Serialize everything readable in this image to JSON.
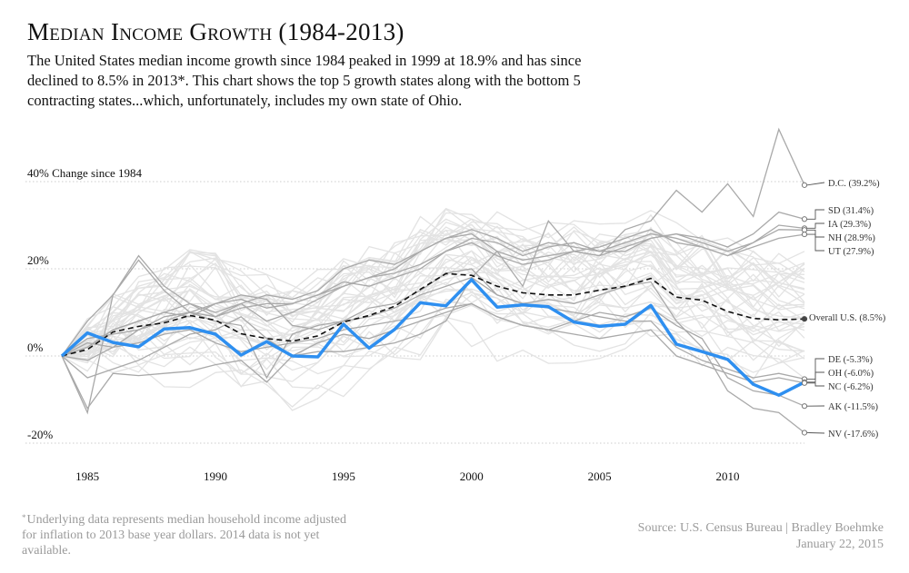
{
  "title": "Median Income Growth (1984-2013)",
  "subtitle": "The United States median income growth since 1984 peaked in 1999 at 18.9% and has since declined to 8.5% in 2013*. This chart shows the top 5 growth states along with the bottom 5 contracting states...which, unfortunately, includes my own state of Ohio.",
  "footnote_marker": "*",
  "footnote": "Underlying data represents median household income adjusted for inflation to 2013 base year dollars. 2014 data is not yet available.",
  "source": "Source: U.S. Census Bureau | Bradley Boehmke",
  "date": "January 22, 2015",
  "colors": {
    "background_states": "#e3e3e3",
    "highlight_states": "#a9a9a9",
    "ohio": "#2e8ff0",
    "us": "#111111",
    "grid": "#cccccc",
    "label_text": "#333333"
  },
  "chart_data": {
    "type": "line",
    "x_ticks": [
      "1985",
      "1990",
      "1995",
      "2000",
      "2005",
      "2010"
    ],
    "y_ticks": [
      "40% Change since 1984",
      "20%",
      "0%",
      "-20%"
    ],
    "y_tick_values": [
      40,
      20,
      0,
      -20
    ],
    "xlim": [
      1984,
      2013
    ],
    "ylim": [
      -22,
      42
    ],
    "grid": "horizontal dotted",
    "years": [
      1984,
      1985,
      1986,
      1987,
      1988,
      1989,
      1990,
      1991,
      1992,
      1993,
      1994,
      1995,
      1996,
      1997,
      1998,
      1999,
      2000,
      2001,
      2002,
      2003,
      2004,
      2005,
      2006,
      2007,
      2008,
      2009,
      2010,
      2011,
      2012,
      2013
    ],
    "series": [
      {
        "name": "D.C.",
        "role": "highlight",
        "label": "D.C. (39.2%)",
        "values": [
          0,
          -12,
          -4,
          -4.5,
          -4,
          -3.5,
          -2,
          -1,
          -6,
          0,
          1,
          1,
          2,
          3,
          5,
          8,
          18,
          24,
          16,
          31,
          24,
          23,
          29,
          31,
          38,
          33,
          39.5,
          32,
          52,
          39.2
        ]
      },
      {
        "name": "SD",
        "role": "highlight",
        "label": "SD (31.4%)",
        "values": [
          0,
          3,
          2,
          6,
          8,
          10,
          9,
          11,
          12,
          12,
          14,
          17,
          16,
          18,
          20,
          24,
          27,
          26,
          23,
          25,
          26,
          24,
          24,
          27,
          28,
          27,
          25,
          28,
          33,
          31.4
        ]
      },
      {
        "name": "IA",
        "role": "highlight",
        "label": "IA (29.3%)",
        "values": [
          0,
          4,
          5,
          6,
          9,
          10,
          12,
          13,
          11,
          12,
          14,
          16,
          18,
          19,
          21,
          24,
          26,
          23,
          21,
          22,
          24,
          23,
          25,
          27,
          28,
          26,
          24,
          26,
          30,
          29.3
        ]
      },
      {
        "name": "NH",
        "role": "highlight",
        "label": "NH (28.9%)",
        "values": [
          0,
          8,
          14,
          23,
          16,
          12,
          10,
          12,
          8,
          10,
          13,
          16,
          18,
          20,
          24,
          27,
          29,
          27,
          24,
          26,
          25,
          24,
          26,
          28,
          27,
          25,
          23,
          26,
          29,
          28.9
        ]
      },
      {
        "name": "UT",
        "role": "highlight",
        "label": "UT (27.9%)",
        "values": [
          0,
          2,
          6,
          8,
          10,
          12,
          9,
          12,
          14,
          13,
          15,
          20,
          22,
          21,
          24,
          27,
          28,
          24,
          22,
          23,
          24,
          25,
          27,
          29,
          26,
          25,
          23,
          25,
          27,
          27.9
        ]
      },
      {
        "name": "DE",
        "role": "highlight",
        "label": "DE (-5.3%)",
        "values": [
          0,
          2,
          6,
          8,
          10,
          9,
          12,
          14,
          13,
          7,
          6,
          8,
          9,
          11,
          14,
          16,
          18,
          14,
          12,
          11,
          10,
          9,
          8,
          8,
          2,
          -1,
          -3,
          -5,
          -4,
          -5.3
        ]
      },
      {
        "name": "NC",
        "role": "highlight",
        "label": "NC (-6.2%)",
        "values": [
          0,
          -1,
          2,
          3,
          5,
          6,
          3,
          1,
          2,
          3,
          4,
          6,
          7,
          8,
          9,
          11,
          12,
          9,
          7,
          6,
          5,
          4,
          5,
          6,
          0,
          -2,
          -4,
          -6,
          -5,
          -6.2
        ]
      },
      {
        "name": "AK",
        "role": "highlight",
        "label": "AK (-11.5%)",
        "values": [
          0,
          -5,
          -3,
          -1,
          2,
          5,
          6,
          9,
          4,
          0,
          3,
          5,
          4,
          6,
          8,
          10,
          12,
          9,
          7,
          6,
          8,
          10,
          9,
          11,
          7,
          4,
          -5,
          -8,
          -9,
          -11.5
        ]
      },
      {
        "name": "NV",
        "role": "highlight",
        "label": "NV (-17.6%)",
        "values": [
          0,
          -13,
          14,
          22,
          15,
          10,
          8,
          7,
          -5,
          5,
          7,
          8,
          11,
          12,
          15,
          19,
          20,
          14,
          12,
          13,
          12,
          14,
          16,
          17,
          8,
          2,
          -8,
          -12,
          -13,
          -17.6
        ]
      },
      {
        "name": "Overall U.S.",
        "role": "us",
        "label": "Overall U.S. (8.5%)",
        "values": [
          0,
          1.5,
          5.5,
          6.8,
          7.6,
          9.3,
          8.2,
          5.1,
          4,
          3.4,
          4.6,
          7.8,
          9.3,
          11.4,
          15.3,
          18.9,
          18.5,
          16,
          14.5,
          14,
          14,
          15.1,
          16,
          17.8,
          13.5,
          12.8,
          10.2,
          8.6,
          8.3,
          8.5
        ]
      },
      {
        "name": "OH",
        "role": "ohio",
        "label": "OH (-6.0%)",
        "values": [
          0,
          5.3,
          3.1,
          2.1,
          6.2,
          6.5,
          5,
          0.2,
          3.3,
          0,
          -0.2,
          7.3,
          1.8,
          6.1,
          12.2,
          11.5,
          17.5,
          11.2,
          11.7,
          11.3,
          7.8,
          6.8,
          7.3,
          11.6,
          2.7,
          1,
          -0.8,
          -6.5,
          -9,
          -6
        ]
      }
    ]
  }
}
